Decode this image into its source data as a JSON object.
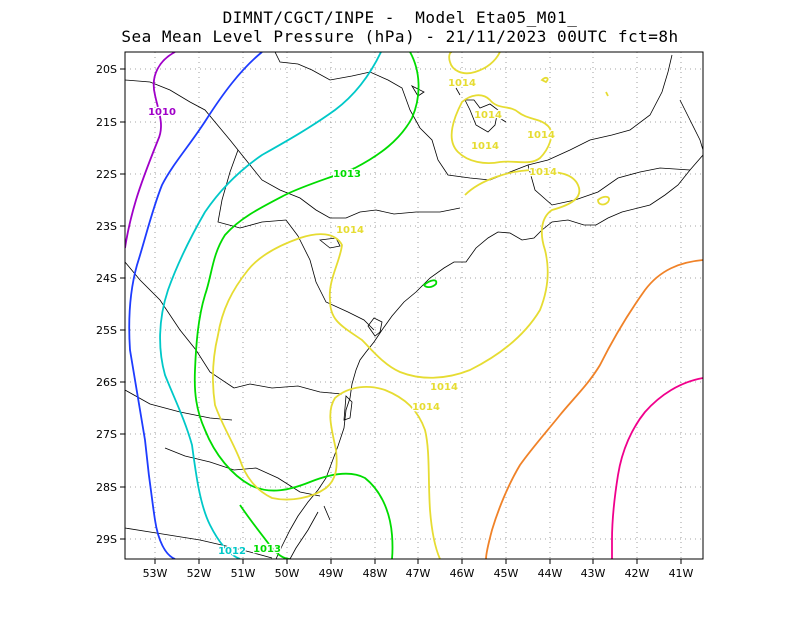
{
  "title_line1": "DIMNT/CGCT/INPE -  Model Eta05_M01_",
  "title_line2": "Sea Mean Level Pressure (hPa) - 21/11/2023 00UTC fct=8h",
  "axes": {
    "lon_ticks": [
      "53W",
      "52W",
      "51W",
      "50W",
      "49W",
      "48W",
      "47W",
      "46W",
      "45W",
      "44W",
      "43W",
      "42W",
      "41W"
    ],
    "lat_ticks": [
      "20S",
      "21S",
      "22S",
      "23S",
      "24S",
      "25S",
      "26S",
      "27S",
      "28S",
      "29S"
    ]
  },
  "colors": {
    "c1010": "#a000c8",
    "c1011": "#1e3cff",
    "c1012": "#00c8c8",
    "c1013": "#00dc00",
    "c1014": "#e6dc32",
    "c1016": "#f08228",
    "c1017": "#f0008c",
    "coast": "#000000",
    "grid": "#888888"
  },
  "contour_labels": [
    {
      "text": "1010",
      "color_key": "c1010"
    },
    {
      "text": "1013",
      "color_key": "c1013"
    },
    {
      "text": "1014",
      "color_key": "c1014"
    },
    {
      "text": "1014",
      "color_key": "c1014"
    },
    {
      "text": "1014",
      "color_key": "c1014"
    },
    {
      "text": "1014",
      "color_key": "c1014"
    },
    {
      "text": "1014",
      "color_key": "c1014"
    },
    {
      "text": "1014",
      "color_key": "c1014"
    },
    {
      "text": "1014",
      "color_key": "c1014"
    },
    {
      "text": "1014",
      "color_key": "c1014"
    },
    {
      "text": "1012",
      "color_key": "c1012"
    },
    {
      "text": "1013",
      "color_key": "c1013"
    }
  ]
}
